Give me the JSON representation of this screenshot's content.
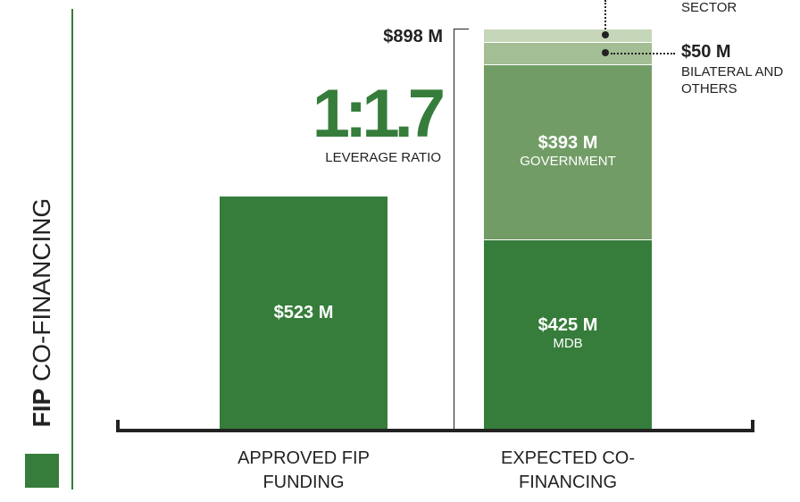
{
  "chart_data": {
    "type": "bar",
    "stacked": true,
    "title_strong": "FIP",
    "title": "CO-FINANCING",
    "ratio": "1:1.7",
    "ratio_label": "LEVERAGE RATIO",
    "categories": [
      "APPROVED FIP FUNDING",
      "EXPECTED CO-FINANCING"
    ],
    "bars": [
      {
        "segments": [
          {
            "value": 523,
            "value_label": "$523 M",
            "color": "#367d3b"
          }
        ]
      },
      {
        "total": 898,
        "total_label": "$898 M",
        "segments": [
          {
            "name": "MDB",
            "value": 425,
            "value_label": "$425 M",
            "color": "#367d3b"
          },
          {
            "name": "GOVERNMENT",
            "value": 393,
            "value_label": "$393 M",
            "color": "#729c66"
          },
          {
            "name": "BILATERAL AND OTHERS",
            "value": 50,
            "value_label": "$50 M",
            "color": "#a3bd94",
            "callout": true
          },
          {
            "name": "SECTOR",
            "value": 30,
            "color": "#c6d6b8",
            "callout": true
          }
        ]
      }
    ]
  }
}
